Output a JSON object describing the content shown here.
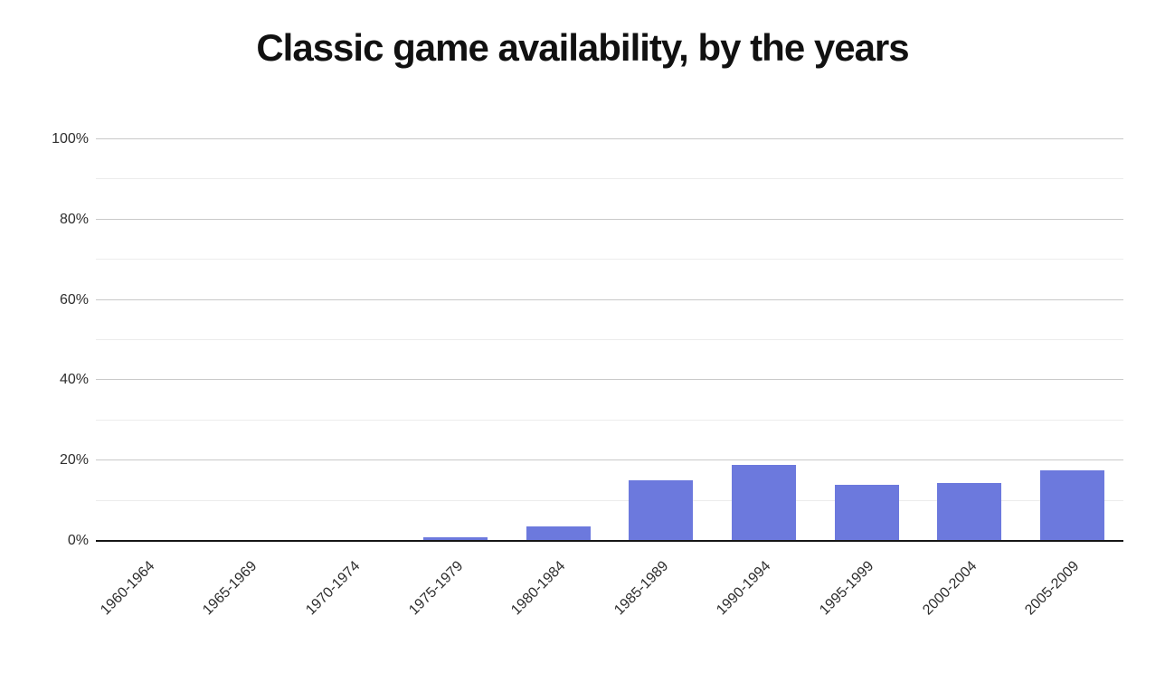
{
  "colors": {
    "background": "#ffffff",
    "title": "#111111",
    "bar": "#6C79DD",
    "axis_line": "#161616",
    "grid_major": "#c9c9c9",
    "grid_minor": "#ececec",
    "tick_label": "#2e2e2e"
  },
  "chart_data": {
    "type": "bar",
    "title": "Classic game availability, by the years",
    "categories": [
      "1960-1964",
      "1965-1969",
      "1970-1974",
      "1975-1979",
      "1980-1984",
      "1985-1989",
      "1990-1994",
      "1995-1999",
      "2000-2004",
      "2005-2009"
    ],
    "values": [
      0,
      0,
      0,
      1,
      3.5,
      15,
      19,
      14,
      14.5,
      17.5
    ],
    "value_unit": "%",
    "xlabel": "",
    "ylabel": "",
    "ylim": [
      0,
      100
    ],
    "y_ticks": [
      "0%",
      "20%",
      "40%",
      "60%",
      "80%",
      "100%"
    ],
    "y_major_step": 20,
    "y_minor_step": 10,
    "x_tick_rotation_deg": 45,
    "grid": "horizontal, major and minor lines",
    "legend": false,
    "bar_slot_fraction": 0.625
  }
}
